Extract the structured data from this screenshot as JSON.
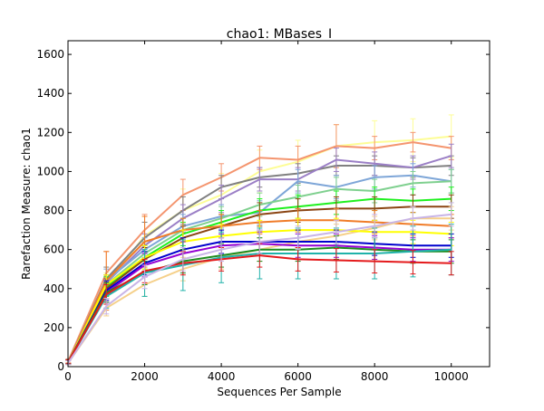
{
  "chart_data": {
    "type": "line",
    "title": "chao1: MBases_I",
    "xlabel": "Sequences Per Sample",
    "ylabel": "Rarefaction Measure: chao1",
    "xlim": [
      0,
      11000
    ],
    "ylim": [
      0,
      1670
    ],
    "xticks": [
      0,
      2000,
      4000,
      6000,
      8000,
      10000
    ],
    "yticks": [
      0,
      200,
      400,
      600,
      800,
      1000,
      1200,
      1400,
      1600
    ],
    "grid": false,
    "legend": "none",
    "x": [
      10,
      1000,
      2000,
      3000,
      4000,
      5000,
      6000,
      7000,
      8000,
      9000,
      10000
    ],
    "series": [
      {
        "color": "#fdfd96",
        "values": [
          20,
          420,
          670,
          800,
          880,
          1000,
          1050,
          1130,
          1150,
          1160,
          1180
        ],
        "err": [
          10,
          60,
          100,
          110,
          110,
          110,
          110,
          110,
          110,
          110,
          110
        ]
      },
      {
        "color": "#f4956f",
        "values": [
          30,
          480,
          700,
          880,
          970,
          1070,
          1060,
          1130,
          1120,
          1150,
          1120
        ],
        "err": [
          10,
          110,
          80,
          80,
          70,
          60,
          70,
          110,
          60,
          50,
          60
        ]
      },
      {
        "color": "#808080",
        "values": [
          25,
          450,
          660,
          800,
          920,
          970,
          990,
          1030,
          1030,
          1020,
          1030
        ],
        "err": [
          10,
          60,
          80,
          70,
          60,
          50,
          50,
          50,
          50,
          50,
          50
        ]
      },
      {
        "color": "#9b7fc6",
        "values": [
          25,
          430,
          620,
          760,
          860,
          960,
          960,
          1060,
          1040,
          1020,
          1080
        ],
        "err": [
          10,
          40,
          60,
          70,
          70,
          60,
          60,
          60,
          60,
          60,
          60
        ]
      },
      {
        "color": "#7ea6d8",
        "values": [
          25,
          440,
          600,
          720,
          770,
          790,
          950,
          920,
          970,
          980,
          950
        ],
        "err": [
          10,
          60,
          60,
          60,
          60,
          60,
          60,
          60,
          60,
          60,
          60
        ]
      },
      {
        "color": "#7fd08f",
        "values": [
          25,
          420,
          580,
          700,
          760,
          830,
          870,
          910,
          900,
          940,
          950
        ],
        "err": [
          10,
          50,
          60,
          60,
          60,
          60,
          60,
          60,
          60,
          60,
          60
        ]
      },
      {
        "color": "#1ef01e",
        "values": [
          25,
          410,
          560,
          680,
          740,
          800,
          820,
          840,
          860,
          850,
          860
        ],
        "err": [
          10,
          50,
          60,
          60,
          60,
          60,
          60,
          60,
          60,
          60,
          60
        ]
      },
      {
        "color": "#8b4513",
        "values": [
          25,
          400,
          550,
          660,
          720,
          780,
          800,
          810,
          810,
          820,
          820
        ],
        "err": [
          10,
          50,
          60,
          60,
          60,
          60,
          60,
          60,
          60,
          60,
          60
        ]
      },
      {
        "color": "#f07c28",
        "values": [
          25,
          440,
          640,
          700,
          720,
          740,
          750,
          750,
          740,
          730,
          720
        ],
        "err": [
          10,
          150,
          130,
          60,
          60,
          60,
          60,
          60,
          60,
          60,
          60
        ]
      },
      {
        "color": "#f5d08a",
        "values": [
          20,
          300,
          420,
          500,
          560,
          600,
          640,
          670,
          710,
          760,
          760
        ],
        "err": [
          10,
          40,
          60,
          60,
          60,
          60,
          60,
          60,
          60,
          60,
          60
        ]
      },
      {
        "color": "#ffff00",
        "values": [
          25,
          420,
          560,
          640,
          670,
          690,
          700,
          700,
          690,
          690,
          680
        ],
        "err": [
          10,
          50,
          60,
          60,
          60,
          60,
          60,
          60,
          60,
          60,
          60
        ]
      },
      {
        "color": "#0000cd",
        "values": [
          25,
          390,
          530,
          600,
          640,
          640,
          640,
          640,
          630,
          620,
          620
        ],
        "err": [
          10,
          50,
          60,
          60,
          60,
          60,
          60,
          60,
          60,
          60,
          60
        ]
      },
      {
        "color": "#9400d3",
        "values": [
          25,
          380,
          520,
          580,
          620,
          630,
          620,
          620,
          610,
          600,
          600
        ],
        "err": [
          10,
          50,
          60,
          60,
          60,
          60,
          60,
          60,
          60,
          60,
          60
        ]
      },
      {
        "color": "#1e8c1e",
        "values": [
          25,
          380,
          480,
          540,
          570,
          600,
          600,
          610,
          600,
          590,
          590
        ],
        "err": [
          10,
          50,
          60,
          60,
          60,
          60,
          60,
          60,
          60,
          60,
          60
        ]
      },
      {
        "color": "#20b2aa",
        "values": [
          25,
          360,
          480,
          520,
          560,
          580,
          580,
          580,
          580,
          590,
          600
        ],
        "err": [
          10,
          60,
          120,
          130,
          130,
          130,
          130,
          130,
          130,
          130,
          130
        ]
      },
      {
        "color": "#e41a1c",
        "values": [
          25,
          370,
          490,
          530,
          550,
          570,
          550,
          545,
          540,
          535,
          530
        ],
        "err": [
          10,
          50,
          60,
          60,
          60,
          60,
          60,
          60,
          60,
          60,
          60
        ]
      },
      {
        "color": "#c8b4e6",
        "values": [
          20,
          310,
          460,
          550,
          600,
          640,
          660,
          690,
          720,
          760,
          780
        ],
        "err": [
          10,
          40,
          60,
          60,
          60,
          60,
          60,
          60,
          60,
          60,
          60
        ]
      }
    ]
  }
}
